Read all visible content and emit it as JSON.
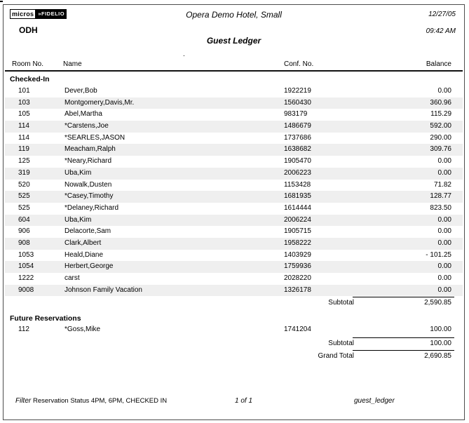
{
  "header": {
    "logo": {
      "micros": "micros",
      "separator": "»",
      "fidelio": "FIDELIO"
    },
    "property_code": "ODH",
    "hotel_name": "Opera Demo Hotel, Small",
    "report_title": "Guest Ledger",
    "date": "12/27/05",
    "time": "09:42 AM",
    "stray_mark": "."
  },
  "table": {
    "columns": {
      "room": "Room No.",
      "name": "Name",
      "conf": "Conf. No.",
      "balance": "Balance"
    },
    "sections": [
      {
        "label": "Checked-In",
        "rows": [
          {
            "room": "101",
            "name": "Dever,Bob",
            "conf": "1922219",
            "balance": "0.00"
          },
          {
            "room": "103",
            "name": "Montgomery,Davis,Mr.",
            "conf": "1560430",
            "balance": "360.96"
          },
          {
            "room": "105",
            "name": "Abel,Martha",
            "conf": "983179",
            "balance": "115.29"
          },
          {
            "room": "114",
            "name": "*Carstens,Joe",
            "conf": "1486679",
            "balance": "592.00"
          },
          {
            "room": "114",
            "name": "*SEARLES,JASON",
            "conf": "1737686",
            "balance": "290.00"
          },
          {
            "room": "119",
            "name": "Meacham,Ralph",
            "conf": "1638682",
            "balance": "309.76"
          },
          {
            "room": "125",
            "name": "*Neary,Richard",
            "conf": "1905470",
            "balance": "0.00"
          },
          {
            "room": "319",
            "name": "Uba,Kim",
            "conf": "2006223",
            "balance": "0.00"
          },
          {
            "room": "520",
            "name": "Nowalk,Dusten",
            "conf": "1153428",
            "balance": "71.82"
          },
          {
            "room": "525",
            "name": "*Casey,Timothy",
            "conf": "1681935",
            "balance": "128.77"
          },
          {
            "room": "525",
            "name": "*Delaney,Richard",
            "conf": "1614444",
            "balance": "823.50"
          },
          {
            "room": "604",
            "name": "Uba,Kim",
            "conf": "2006224",
            "balance": "0.00"
          },
          {
            "room": "906",
            "name": "Delacorte,Sam",
            "conf": "1905715",
            "balance": "0.00"
          },
          {
            "room": "908",
            "name": "Clark,Albert",
            "conf": "1958222",
            "balance": "0.00"
          },
          {
            "room": "1053",
            "name": "Heald,Diane",
            "conf": "1403929",
            "balance": "- 101.25"
          },
          {
            "room": "1054",
            "name": "Herbert,George",
            "conf": "1759936",
            "balance": "0.00"
          },
          {
            "room": "1222",
            "name": "carst",
            "conf": "2028220",
            "balance": "0.00"
          },
          {
            "room": "9008",
            "name": "Johnson Family Vacation",
            "conf": "1326178",
            "balance": "0.00"
          }
        ],
        "subtotal_label": "Subtotal",
        "subtotal_value": "2,590.85"
      },
      {
        "label": "Future Reservations",
        "rows": [
          {
            "room": "112",
            "name": "*Goss,Mike",
            "conf": "1741204",
            "balance": "100.00"
          }
        ],
        "subtotal_label": "Subtotal",
        "subtotal_value": "100.00"
      }
    ],
    "grand_total_label": "Grand Total",
    "grand_total_value": "2,690.85"
  },
  "footer": {
    "filter_label": "Filter",
    "filter_value": "Reservation Status 4PM, 6PM, CHECKED IN",
    "page_number": "1 of 1",
    "report_name": "guest_ledger"
  },
  "colors": {
    "row_stripe": "#efefef",
    "logo_background": "#000000",
    "text": "#000000"
  }
}
